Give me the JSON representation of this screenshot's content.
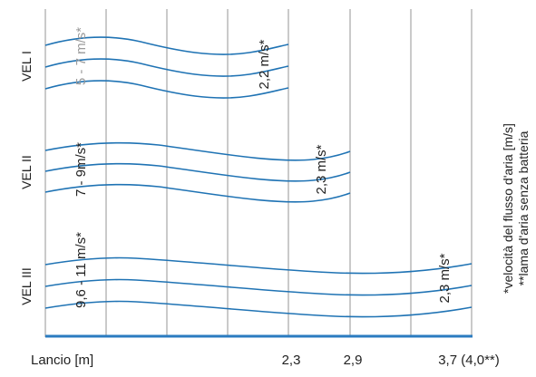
{
  "colors": {
    "grid": "#b9b9b9",
    "flow": "#1f73b4",
    "baseline": "#2a7bc0",
    "text": "#222222",
    "faint_text": "#9a9a9a"
  },
  "levels": [
    {
      "name": "VEL I",
      "speed_label": "5 - 7 m/s*",
      "end_label": "2,2 m/s*"
    },
    {
      "name": "VEL II",
      "speed_label": "7 - 9m/s*",
      "end_label": "2,3 m/s*"
    },
    {
      "name": "VEL III",
      "speed_label": "9,6 - 11 m/s*",
      "end_label": "2,3 m/s*"
    }
  ],
  "axis": {
    "label": "Lancio [m]",
    "ticks": [
      "2,3",
      "2,9",
      "3,7 (4,0**)"
    ]
  },
  "notes": {
    "note1": "*velocità del flusso d'aria [m/s]",
    "note2": "**lama d'aria senza batteria"
  }
}
